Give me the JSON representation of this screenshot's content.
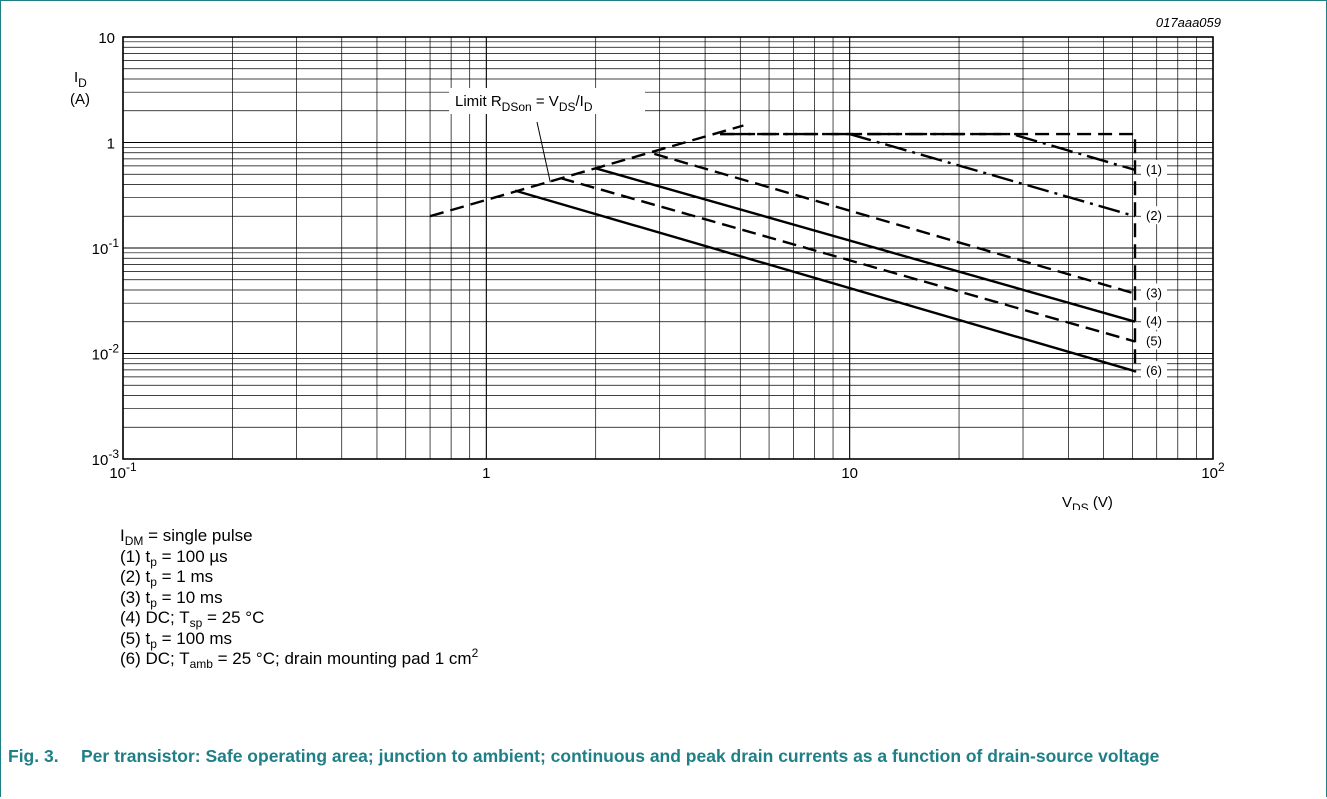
{
  "chart_data": {
    "type": "line",
    "code": "017aaa059",
    "xlabel": {
      "main": "V",
      "sub": "DS",
      "unit": " (V)"
    },
    "ylabel": {
      "main": "I",
      "sub": "D",
      "unit": "(A)"
    },
    "x_scale": "log",
    "y_scale": "log",
    "xlim": [
      0.1,
      100
    ],
    "ylim": [
      0.001,
      10
    ],
    "x_ticks": [
      {
        "value": 0.1,
        "base": "10",
        "exp": "-1"
      },
      {
        "value": 1,
        "base": "1",
        "exp": ""
      },
      {
        "value": 10,
        "base": "10",
        "exp": ""
      },
      {
        "value": 100,
        "base": "10",
        "exp": "2"
      }
    ],
    "y_ticks": [
      {
        "value": 10,
        "base": "10",
        "exp": ""
      },
      {
        "value": 1,
        "base": "1",
        "exp": ""
      },
      {
        "value": 0.1,
        "base": "10",
        "exp": "-1"
      },
      {
        "value": 0.01,
        "base": "10",
        "exp": "-2"
      },
      {
        "value": 0.001,
        "base": "10",
        "exp": "-3"
      }
    ],
    "grid": true,
    "annotation": {
      "parts": [
        {
          "t": "Limit R"
        },
        {
          "t": "DSon",
          "sub": true
        },
        {
          "t": " = V"
        },
        {
          "t": "DS",
          "sub": true
        },
        {
          "t": "/I"
        },
        {
          "t": "D",
          "sub": true
        }
      ],
      "pointer_to": [
        1.5,
        0.42
      ]
    },
    "limit_line": {
      "style": "dashed",
      "x": [
        0.7,
        5.1
      ],
      "y": [
        0.2,
        1.45
      ]
    },
    "envelope": {
      "style": "dashed",
      "x": [
        4.4,
        61,
        61
      ],
      "y": [
        1.2,
        1.2,
        0.0066
      ]
    },
    "series": [
      {
        "name": "(1)",
        "style": "dashdot",
        "x": [
          4.4,
          28,
          61
        ],
        "y": [
          1.2,
          1.2,
          0.55
        ]
      },
      {
        "name": "(2)",
        "style": "dashdot",
        "x": [
          10,
          61
        ],
        "y": [
          1.2,
          0.2
        ]
      },
      {
        "name": "(3)",
        "style": "dashed",
        "x": [
          2.9,
          61
        ],
        "y": [
          0.78,
          0.037
        ]
      },
      {
        "name": "(4)",
        "style": "solid",
        "x": [
          2.0,
          61
        ],
        "y": [
          0.57,
          0.02
        ]
      },
      {
        "name": "(5)",
        "style": "dashed",
        "x": [
          1.6,
          61
        ],
        "y": [
          0.46,
          0.013
        ]
      },
      {
        "name": "(6)",
        "style": "solid",
        "x": [
          1.2,
          61
        ],
        "y": [
          0.35,
          0.0068
        ]
      }
    ]
  },
  "notes": [
    {
      "parts": [
        {
          "t": "I"
        },
        {
          "t": "DM",
          "sub": true
        },
        {
          "t": " = single pulse"
        }
      ]
    },
    {
      "parts": [
        {
          "t": "(1) t"
        },
        {
          "t": "p",
          "sub": true
        },
        {
          "t": " = 100 µs"
        }
      ]
    },
    {
      "parts": [
        {
          "t": "(2) t"
        },
        {
          "t": "p",
          "sub": true
        },
        {
          "t": " = 1 ms"
        }
      ]
    },
    {
      "parts": [
        {
          "t": "(3) t"
        },
        {
          "t": "p",
          "sub": true
        },
        {
          "t": " = 10 ms"
        }
      ]
    },
    {
      "parts": [
        {
          "t": "(4) DC; T"
        },
        {
          "t": "sp",
          "sub": true
        },
        {
          "t": " = 25 °C"
        }
      ]
    },
    {
      "parts": [
        {
          "t": "(5) t"
        },
        {
          "t": "p",
          "sub": true
        },
        {
          "t": " = 100 ms"
        }
      ]
    },
    {
      "parts": [
        {
          "t": "(6) DC; T"
        },
        {
          "t": "amb",
          "sub": true
        },
        {
          "t": " = 25 °C; drain mounting pad 1 cm"
        },
        {
          "t": "2",
          "sup": true
        }
      ]
    }
  ],
  "caption": {
    "number": "Fig. 3.",
    "text": "Per transistor: Safe operating area; junction to ambient; continuous and peak drain currents as a function of drain-source voltage"
  },
  "colors": {
    "accent": "#1f7f86",
    "ink": "#000000"
  }
}
